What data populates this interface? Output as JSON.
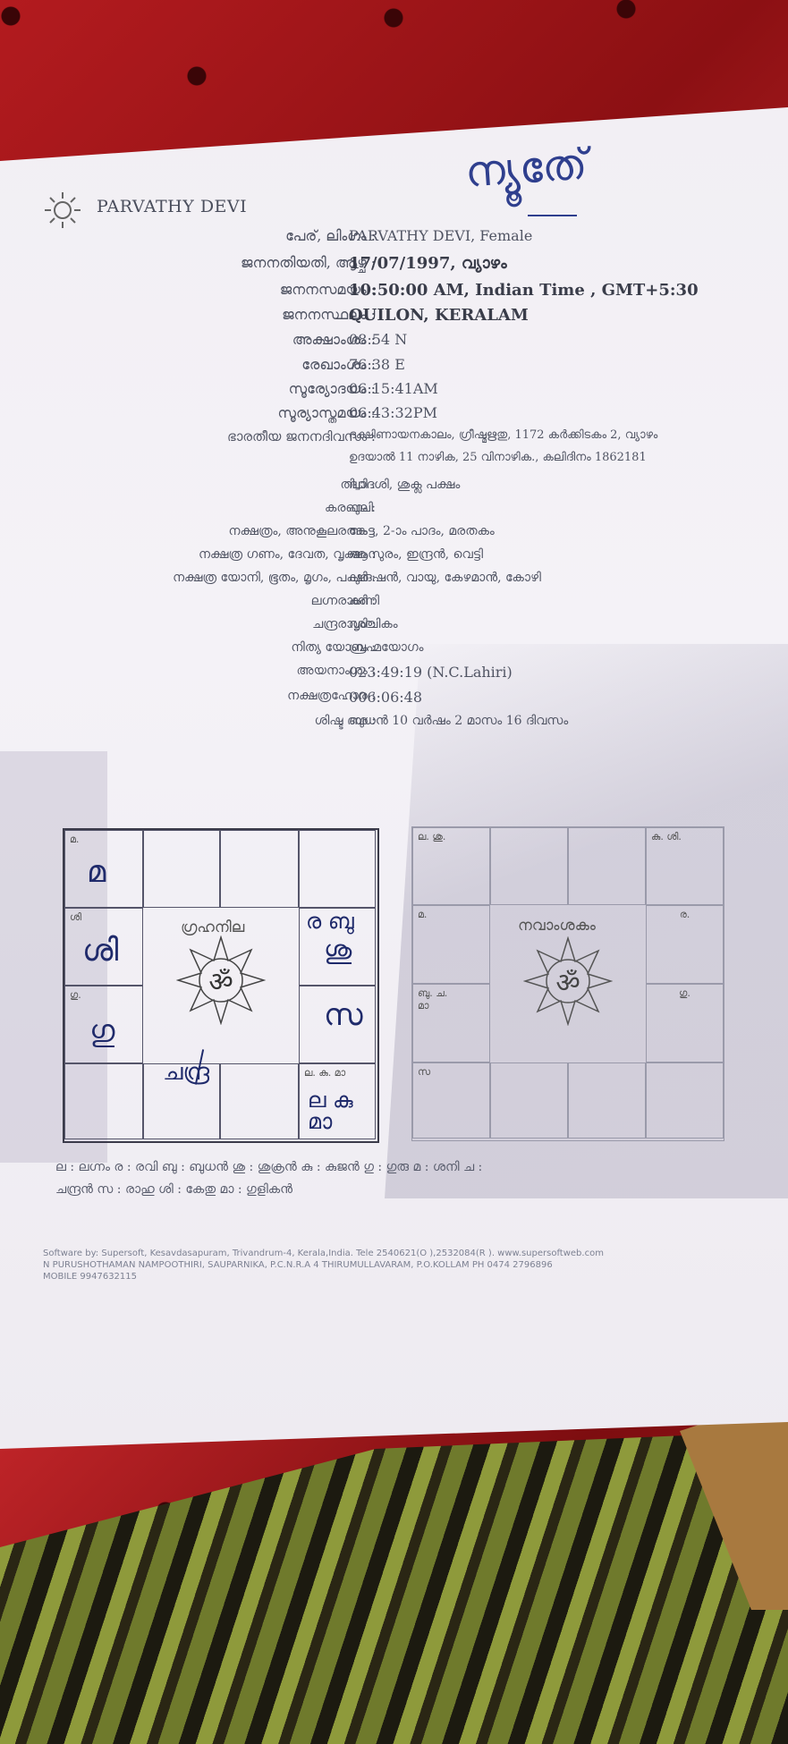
{
  "header": {
    "logo_label": "PARVATHY DEVI",
    "handwritten_note": "ന്യൂതേ്",
    "logo_icon": "sun-icon"
  },
  "details": [
    {
      "label": "പേര്, ലിംഗം :",
      "value": "PARVATHY DEVI, Female"
    },
    {
      "label": "ജനനതിയതി, ആഴ്ച :",
      "value": "17/07/1997, വ്യാഴം"
    },
    {
      "label": "ജനനസമയം :",
      "value": "10:50:00 AM, Indian Time , GMT+5:30"
    },
    {
      "label": "ജനനസ്ഥലം :",
      "value": "QUILON, KERALAM"
    },
    {
      "label": "അക്ഷാംശം :",
      "value": "08:54 N"
    },
    {
      "label": "രേഖാംശം :",
      "value": "76:38 E"
    },
    {
      "label": "സൂര്യോദയം :",
      "value": "06:15:41AM"
    },
    {
      "label": "സൂര്യാസ്തമയം :",
      "value": "06:43:32PM"
    },
    {
      "label": "ഭാരതീയ ജനനദിവസം :",
      "value": "ദക്ഷിണായനകാലം, ഗ്രീഷ്മഋതു, 1172 കർക്കിടകം 2, വ്യാഴം"
    },
    {
      "label": "",
      "value": "ഉദയാൽ 11 നാഴിക, 25 വിനാഴിക., കലിദിനം 1862181"
    },
    {
      "label": "തിഥി :",
      "value": "ദ്വാദശി, ശുക്ല പക്ഷം"
    },
    {
      "label": "കരണം :",
      "value": "പുലി"
    },
    {
      "label": "നക്ഷത്രം, അനുകൂലരത്നം :",
      "value": "കേട്ട, 2-ാം പാദം, മരതകം"
    },
    {
      "label": "നക്ഷത്ര ഗണം, ദേവത, വൃക്ഷം :",
      "value": "ആസുരം, ഇന്ദ്രൻ, വെട്ടി"
    },
    {
      "label": "നക്ഷത്ര യോനി, ഭൂതം, മൃഗം, പക്ഷി :",
      "value": "പുരുഷൻ, വായു, കേഴമാൻ, കോഴി"
    },
    {
      "label": "ലഗ്നരാശി :",
      "value": "കന്നി"
    },
    {
      "label": "ചന്ദ്രരാശി :",
      "value": "വൃശ്ചികം"
    },
    {
      "label": "നിത്യ യോഗം :",
      "value": "ബ്രഹ്മയോഗം"
    },
    {
      "label": "അയനാംശം :",
      "value": "023:49:19 (N.C.Lahiri)"
    },
    {
      "label": "നക്ഷത്രഹോര :",
      "value": "006:06:48"
    },
    {
      "label": "ശിഷ്ട ദശ :",
      "value": "ബുധൻ 10 വർഷം 2 മാസം 16 ദിവസം"
    }
  ],
  "grahanila": {
    "title": "ഗ്രഹനില",
    "printed": [
      "മ.",
      "ശി",
      "ഗു.",
      "ല. കു. മാ"
    ],
    "handwritten": [
      "മ",
      "ശി",
      "ഗു",
      "ചന്ദ്ര",
      "ര ബു",
      "ശു",
      "സ",
      "ല കു മാ"
    ]
  },
  "navamsa": {
    "title": "നവാംശകം",
    "printed": [
      "ല. ശു.",
      "കു. ശി.",
      "മ.",
      "ര.",
      "ബു. ച.",
      "മാ",
      "ഗു.",
      "സ"
    ]
  },
  "om_symbol": "ॐ",
  "legend": [
    "ല : ലഗ്നം ര : രവി ബു : ബുധൻ ശു : ശുക്രൻ കു : കുജൻ ഗു : ഗുരു മ : ശനി ച :",
    "ചന്ദ്രൻ സ : രാഹു ശി : കേതു മാ : ഗുളികൻ"
  ],
  "footer": [
    "Software by: Supersoft, Kesavdasapuram, Trivandrum-4, Kerala,India. Tele 2540621(O ),2532084(R ). www.supersoftweb.com",
    "N PURUSHOTHAMAN NAMPOOTHIRI, SAUPARNIKA, P.C.N.R.A 4 THIRUMULLAVARAM, P.O.KOLLAM PH 0474 2796896",
    "MOBILE 9947632115"
  ]
}
